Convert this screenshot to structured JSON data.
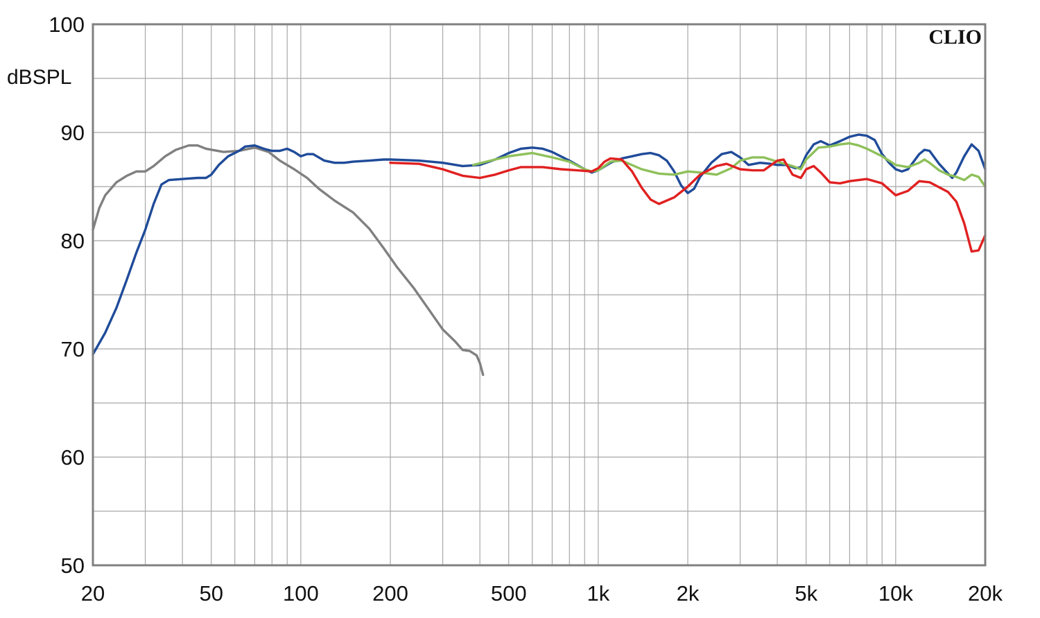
{
  "chart_data": {
    "type": "line",
    "xscale": "log",
    "xlim": [
      20,
      20000
    ],
    "ylim": [
      50,
      100
    ],
    "grid": true,
    "ylabel": "dBSPL",
    "brand": "CLIO",
    "xticks": [
      {
        "value": 20,
        "label": "20"
      },
      {
        "value": 50,
        "label": "50"
      },
      {
        "value": 100,
        "label": "100"
      },
      {
        "value": 200,
        "label": "200"
      },
      {
        "value": 500,
        "label": "500"
      },
      {
        "value": 1000,
        "label": "1k"
      },
      {
        "value": 2000,
        "label": "2k"
      },
      {
        "value": 5000,
        "label": "5k"
      },
      {
        "value": 10000,
        "label": "10k"
      },
      {
        "value": 20000,
        "label": "20k"
      }
    ],
    "yticks": [
      {
        "value": 50,
        "label": "50"
      },
      {
        "value": 60,
        "label": "60"
      },
      {
        "value": 70,
        "label": "70"
      },
      {
        "value": 80,
        "label": "80"
      },
      {
        "value": 90,
        "label": "90"
      },
      {
        "value": 100,
        "label": "100"
      }
    ],
    "series": [
      {
        "color": "#808080",
        "points": [
          [
            20,
            81
          ],
          [
            21,
            83
          ],
          [
            22,
            84.2
          ],
          [
            24,
            85.4
          ],
          [
            26,
            86
          ],
          [
            28,
            86.4
          ],
          [
            30,
            86.4
          ],
          [
            32,
            86.9
          ],
          [
            35,
            87.8
          ],
          [
            38,
            88.4
          ],
          [
            42,
            88.8
          ],
          [
            45,
            88.8
          ],
          [
            48,
            88.5
          ],
          [
            55,
            88.2
          ],
          [
            62,
            88.3
          ],
          [
            70,
            88.6
          ],
          [
            78,
            88.2
          ],
          [
            85,
            87.4
          ],
          [
            95,
            86.6
          ],
          [
            105,
            85.8
          ],
          [
            115,
            84.8
          ],
          [
            130,
            83.7
          ],
          [
            150,
            82.6
          ],
          [
            170,
            81.1
          ],
          [
            190,
            79.3
          ],
          [
            210,
            77.6
          ],
          [
            240,
            75.6
          ],
          [
            270,
            73.6
          ],
          [
            300,
            71.8
          ],
          [
            330,
            70.7
          ],
          [
            350,
            69.9
          ],
          [
            370,
            69.8
          ],
          [
            390,
            69.4
          ],
          [
            400,
            68.7
          ],
          [
            410,
            67.6
          ]
        ]
      },
      {
        "color": "#1f4b99",
        "points": [
          [
            20,
            69.5
          ],
          [
            22,
            71.5
          ],
          [
            24,
            73.8
          ],
          [
            26,
            76.4
          ],
          [
            28,
            78.9
          ],
          [
            30,
            81
          ],
          [
            32,
            83.4
          ],
          [
            34,
            85.2
          ],
          [
            36,
            85.6
          ],
          [
            40,
            85.7
          ],
          [
            45,
            85.8
          ],
          [
            48,
            85.8
          ],
          [
            50,
            86.1
          ],
          [
            53,
            87
          ],
          [
            57,
            87.8
          ],
          [
            62,
            88.3
          ],
          [
            65,
            88.7
          ],
          [
            70,
            88.8
          ],
          [
            75,
            88.5
          ],
          [
            80,
            88.3
          ],
          [
            85,
            88.3
          ],
          [
            90,
            88.5
          ],
          [
            95,
            88.2
          ],
          [
            100,
            87.8
          ],
          [
            105,
            88
          ],
          [
            110,
            88
          ],
          [
            120,
            87.4
          ],
          [
            130,
            87.2
          ],
          [
            140,
            87.2
          ],
          [
            150,
            87.3
          ],
          [
            170,
            87.4
          ],
          [
            190,
            87.5
          ],
          [
            200,
            87.5
          ],
          [
            250,
            87.4
          ],
          [
            300,
            87.2
          ],
          [
            350,
            86.9
          ],
          [
            400,
            87
          ],
          [
            450,
            87.5
          ],
          [
            500,
            88.1
          ],
          [
            550,
            88.5
          ],
          [
            600,
            88.6
          ],
          [
            650,
            88.5
          ],
          [
            700,
            88.2
          ],
          [
            800,
            87.4
          ],
          [
            900,
            86.6
          ],
          [
            950,
            86.3
          ],
          [
            1000,
            86.5
          ],
          [
            1100,
            87.2
          ],
          [
            1200,
            87.6
          ],
          [
            1300,
            87.8
          ],
          [
            1400,
            88
          ],
          [
            1500,
            88.1
          ],
          [
            1600,
            87.9
          ],
          [
            1700,
            87.4
          ],
          [
            1800,
            86.4
          ],
          [
            1900,
            85.1
          ],
          [
            2000,
            84.4
          ],
          [
            2100,
            84.8
          ],
          [
            2200,
            85.9
          ],
          [
            2400,
            87.2
          ],
          [
            2600,
            88
          ],
          [
            2800,
            88.2
          ],
          [
            3000,
            87.7
          ],
          [
            3200,
            87
          ],
          [
            3500,
            87.2
          ],
          [
            3800,
            87.1
          ],
          [
            4000,
            87
          ],
          [
            4300,
            87
          ],
          [
            4600,
            86.7
          ],
          [
            4800,
            86.8
          ],
          [
            5000,
            87.9
          ],
          [
            5300,
            88.9
          ],
          [
            5600,
            89.2
          ],
          [
            6000,
            88.8
          ],
          [
            6500,
            89.2
          ],
          [
            7000,
            89.6
          ],
          [
            7500,
            89.8
          ],
          [
            8000,
            89.7
          ],
          [
            8500,
            89.3
          ],
          [
            9000,
            88
          ],
          [
            9500,
            87.2
          ],
          [
            10000,
            86.6
          ],
          [
            10500,
            86.4
          ],
          [
            11000,
            86.6
          ],
          [
            12000,
            88
          ],
          [
            12500,
            88.4
          ],
          [
            13000,
            88.3
          ],
          [
            14000,
            87.1
          ],
          [
            15000,
            86.2
          ],
          [
            15500,
            85.8
          ],
          [
            16000,
            86.3
          ],
          [
            17000,
            87.8
          ],
          [
            18000,
            88.9
          ],
          [
            19000,
            88.3
          ],
          [
            20000,
            86.6
          ]
        ]
      },
      {
        "color": "#8ec05a",
        "points": [
          [
            380,
            87
          ],
          [
            420,
            87.3
          ],
          [
            500,
            87.8
          ],
          [
            600,
            88.1
          ],
          [
            700,
            87.7
          ],
          [
            800,
            87.3
          ],
          [
            900,
            86.6
          ],
          [
            950,
            86.4
          ],
          [
            1000,
            86.5
          ],
          [
            1100,
            87.3
          ],
          [
            1200,
            87.4
          ],
          [
            1400,
            86.6
          ],
          [
            1600,
            86.2
          ],
          [
            1800,
            86.1
          ],
          [
            2000,
            86.4
          ],
          [
            2200,
            86.3
          ],
          [
            2500,
            86.1
          ],
          [
            2800,
            86.7
          ],
          [
            3000,
            87.4
          ],
          [
            3300,
            87.7
          ],
          [
            3600,
            87.7
          ],
          [
            4000,
            87.3
          ],
          [
            4500,
            86.9
          ],
          [
            4800,
            86.6
          ],
          [
            5000,
            87.5
          ],
          [
            5500,
            88.6
          ],
          [
            6000,
            88.7
          ],
          [
            6500,
            88.9
          ],
          [
            7000,
            89
          ],
          [
            7500,
            88.8
          ],
          [
            8000,
            88.5
          ],
          [
            9000,
            87.8
          ],
          [
            10000,
            87
          ],
          [
            11000,
            86.8
          ],
          [
            12000,
            87.2
          ],
          [
            12500,
            87.5
          ],
          [
            13000,
            87.2
          ],
          [
            14000,
            86.5
          ],
          [
            15000,
            86.1
          ],
          [
            16000,
            85.9
          ],
          [
            17000,
            85.6
          ],
          [
            18000,
            86.1
          ],
          [
            19000,
            85.9
          ],
          [
            20000,
            85
          ]
        ]
      },
      {
        "color": "#e02020",
        "points": [
          [
            200,
            87.2
          ],
          [
            250,
            87.1
          ],
          [
            300,
            86.6
          ],
          [
            350,
            86
          ],
          [
            400,
            85.8
          ],
          [
            450,
            86.1
          ],
          [
            500,
            86.5
          ],
          [
            550,
            86.8
          ],
          [
            650,
            86.8
          ],
          [
            750,
            86.6
          ],
          [
            850,
            86.5
          ],
          [
            950,
            86.4
          ],
          [
            1000,
            86.7
          ],
          [
            1050,
            87.3
          ],
          [
            1100,
            87.6
          ],
          [
            1200,
            87.5
          ],
          [
            1300,
            86.4
          ],
          [
            1400,
            84.9
          ],
          [
            1500,
            83.8
          ],
          [
            1600,
            83.4
          ],
          [
            1800,
            84
          ],
          [
            2000,
            85
          ],
          [
            2200,
            86.1
          ],
          [
            2500,
            86.9
          ],
          [
            2700,
            87.1
          ],
          [
            3000,
            86.6
          ],
          [
            3300,
            86.5
          ],
          [
            3600,
            86.5
          ],
          [
            4000,
            87.4
          ],
          [
            4200,
            87.5
          ],
          [
            4500,
            86.1
          ],
          [
            4800,
            85.8
          ],
          [
            5000,
            86.6
          ],
          [
            5300,
            86.9
          ],
          [
            5600,
            86.3
          ],
          [
            6000,
            85.4
          ],
          [
            6500,
            85.3
          ],
          [
            7000,
            85.5
          ],
          [
            8000,
            85.7
          ],
          [
            9000,
            85.3
          ],
          [
            10000,
            84.2
          ],
          [
            11000,
            84.6
          ],
          [
            12000,
            85.5
          ],
          [
            13000,
            85.4
          ],
          [
            15000,
            84.5
          ],
          [
            16000,
            83.6
          ],
          [
            17000,
            81.6
          ],
          [
            18000,
            79
          ],
          [
            19000,
            79.1
          ],
          [
            20000,
            80.5
          ]
        ]
      }
    ]
  }
}
